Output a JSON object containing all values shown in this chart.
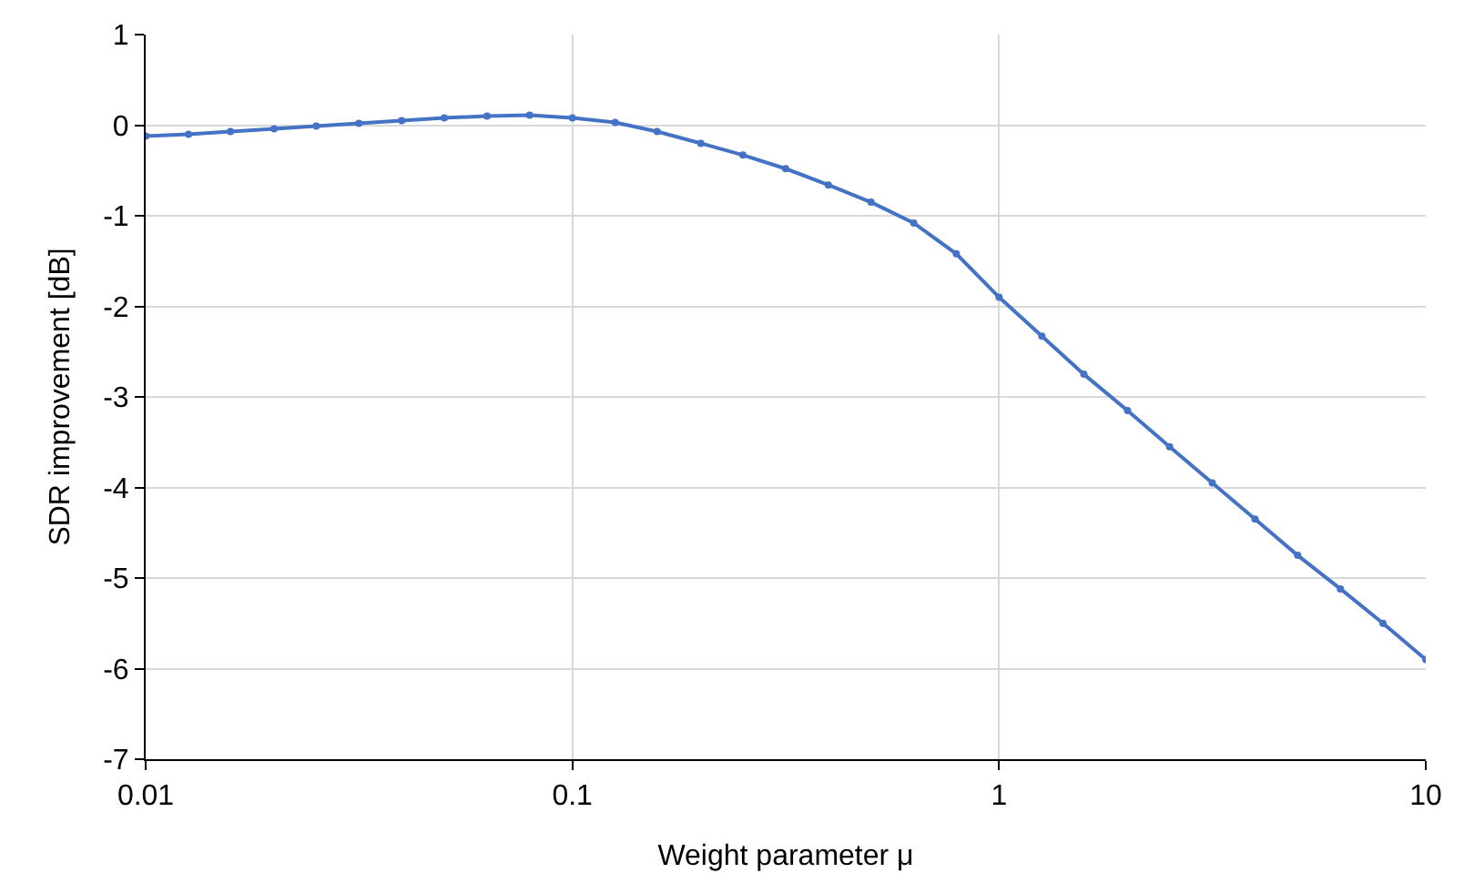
{
  "chart_data": {
    "type": "line",
    "xlabel": "Weight parameter μ",
    "ylabel": "SDR improvement [dB]",
    "log": "x",
    "grid": true,
    "marker": "circle",
    "line_style": "solid",
    "xlim": [
      0.01,
      10
    ],
    "xticks": [
      0.01,
      0.1,
      1,
      10
    ],
    "ylim": [
      -7,
      1
    ],
    "yticks": [
      -7,
      -6,
      -5,
      -4,
      -3,
      -2,
      -1,
      0,
      1
    ],
    "series": [
      {
        "color": "#4472c4",
        "x": [
          0.01,
          0.0126,
          0.0158,
          0.02,
          0.0251,
          0.0316,
          0.0398,
          0.0501,
          0.0631,
          0.0794,
          0.1,
          0.126,
          0.158,
          0.2,
          0.251,
          0.316,
          0.398,
          0.501,
          0.631,
          0.794,
          1,
          1.26,
          1.58,
          2,
          2.51,
          3.16,
          3.98,
          5.01,
          6.31,
          7.94,
          10
        ],
        "values": [
          -0.12,
          -0.1,
          -0.07,
          -0.04,
          -0.01,
          0.02,
          0.05,
          0.08,
          0.1,
          0.11,
          0.08,
          0.03,
          -0.07,
          -0.2,
          -0.33,
          -0.48,
          -0.66,
          -0.85,
          -1.08,
          -1.42,
          -1.9,
          -2.33,
          -2.75,
          -3.15,
          -3.55,
          -3.95,
          -4.35,
          -4.75,
          -5.12,
          -5.5,
          -5.9
        ]
      }
    ]
  }
}
